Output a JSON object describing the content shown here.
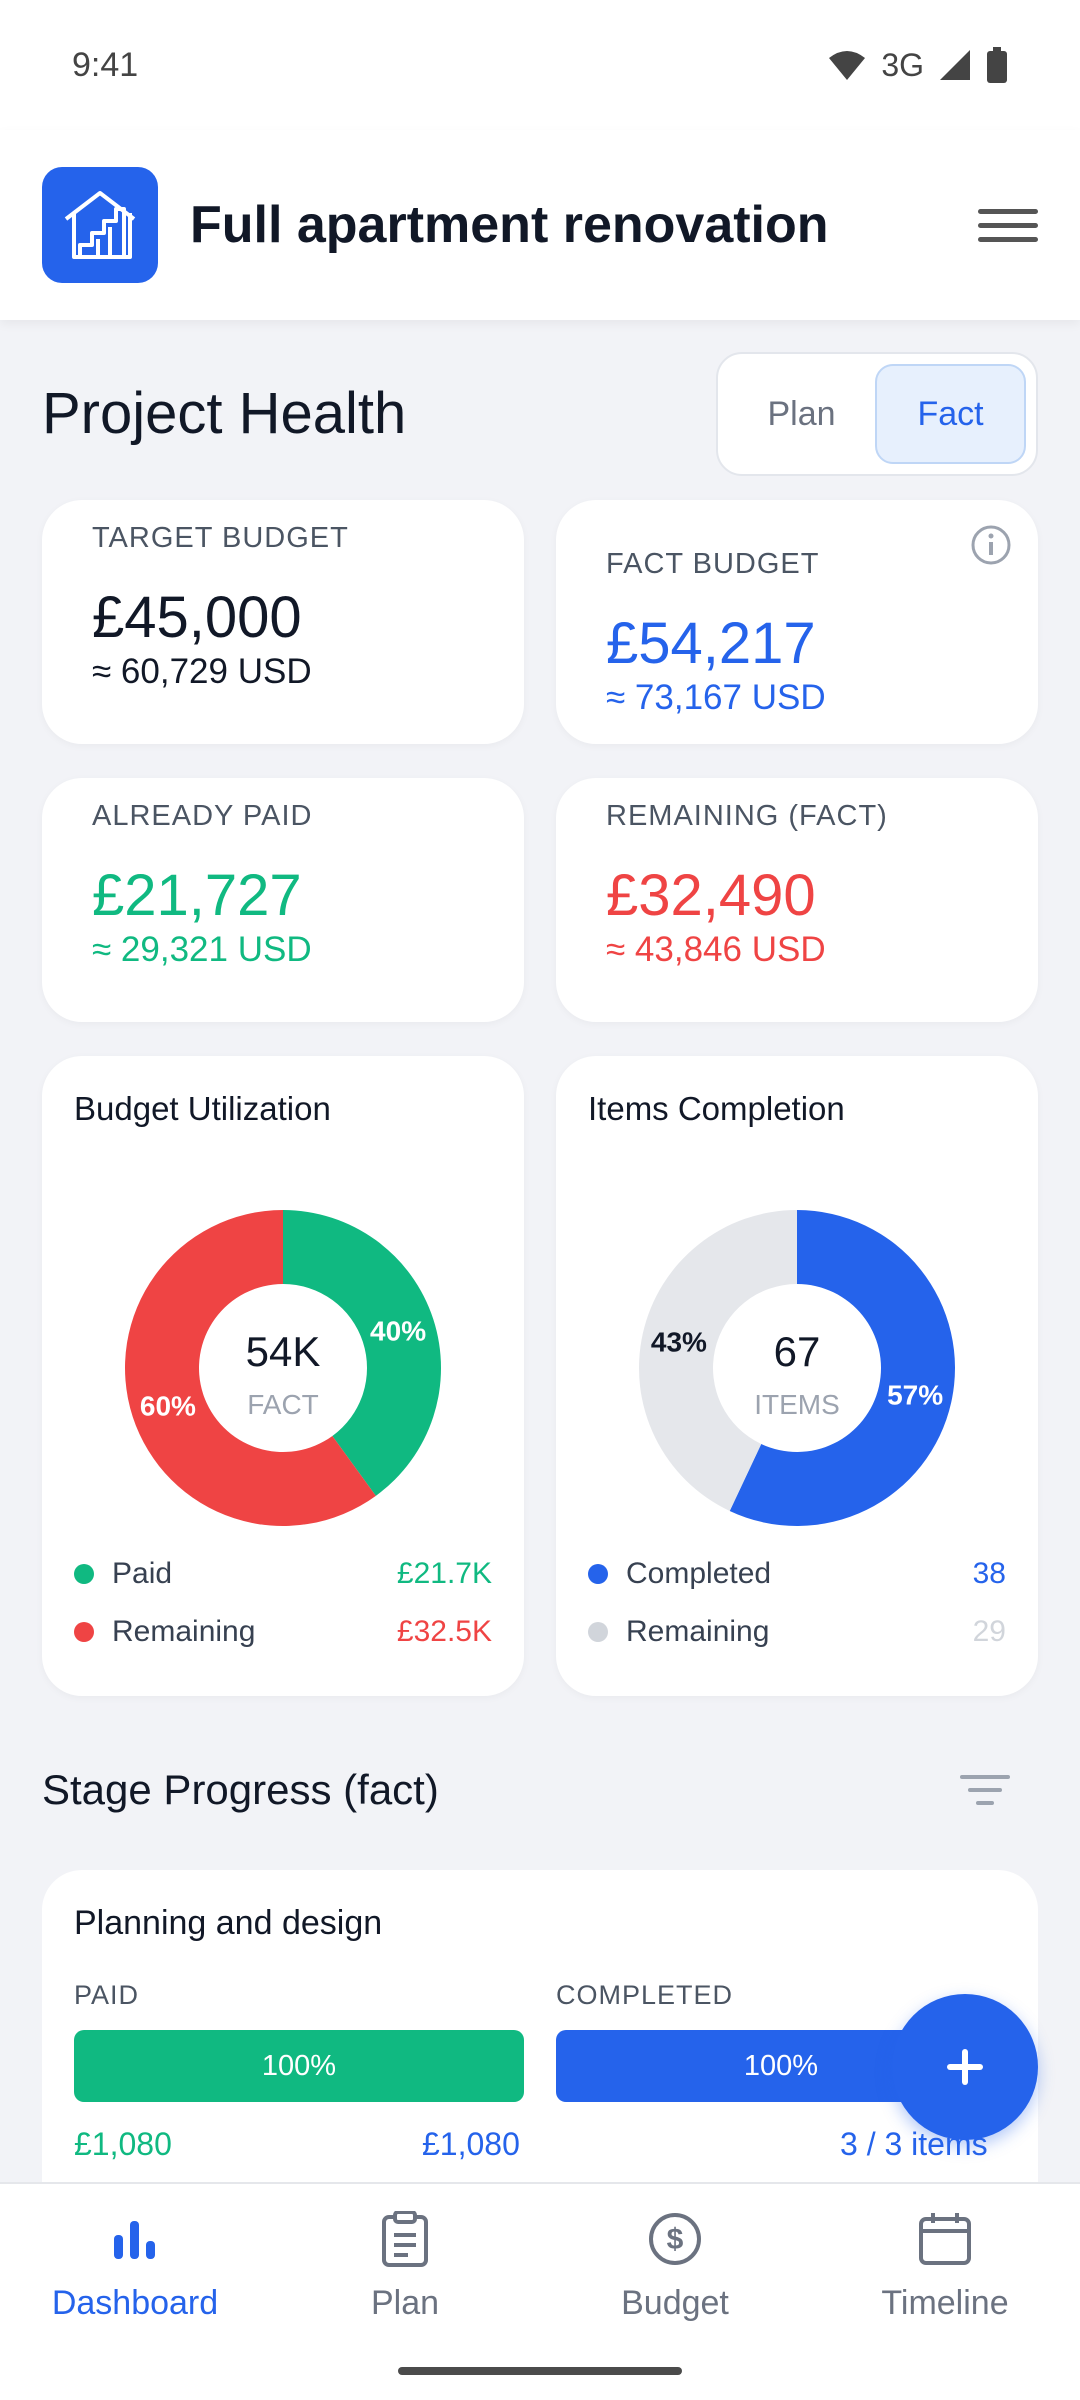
{
  "status_bar": {
    "time": "9:41",
    "network": "3G"
  },
  "header": {
    "title": "Full apartment renovation",
    "logo_icon": "house-stairs-icon",
    "menu_icon": "hamburger-menu-icon"
  },
  "health": {
    "title": "Project Health",
    "toggle": {
      "plan": "Plan",
      "fact": "Fact",
      "selected": "Fact"
    }
  },
  "stats": {
    "target": {
      "label": "TARGET BUDGET",
      "value": "£45,000",
      "sub": "≈ 60,729 USD"
    },
    "fact": {
      "label": "FACT BUDGET",
      "value": "£54,217",
      "sub": "≈ 73,167 USD"
    },
    "paid": {
      "label": "ALREADY PAID",
      "value": "£21,727",
      "sub": "≈ 29,321 USD"
    },
    "remaining": {
      "label": "REMAINING (FACT)",
      "value": "£32,490",
      "sub": "≈ 43,846 USD"
    }
  },
  "budget_chart": {
    "title": "Budget Utilization",
    "center_value": "54K",
    "center_label": "FACT",
    "segments": [
      {
        "name": "Paid",
        "percent": 40,
        "pct_label": "40%",
        "color": "#10b981",
        "legend_value": "£21.7K"
      },
      {
        "name": "Remaining",
        "percent": 60,
        "pct_label": "60%",
        "color": "#ef4444",
        "legend_value": "£32.5K"
      }
    ]
  },
  "items_chart": {
    "title": "Items Completion",
    "center_value": "67",
    "center_label": "ITEMS",
    "segments": [
      {
        "name": "Completed",
        "percent": 57,
        "pct_label": "57%",
        "color": "#2563eb",
        "legend_value": "38"
      },
      {
        "name": "Remaining",
        "percent": 43,
        "pct_label": "43%",
        "color": "#e5e7eb",
        "legend_value": "29"
      }
    ]
  },
  "stage_progress": {
    "title": "Stage Progress (fact)",
    "stages": [
      {
        "name": "Planning and design",
        "paid_label": "PAID",
        "paid_percent": "100%",
        "paid_amount": "£1,080",
        "total_amount": "£1,080",
        "completed_label": "COMPLETED",
        "completed_percent": "100%",
        "items_text": "3 / 3 items"
      }
    ]
  },
  "nav": {
    "items": [
      {
        "label": "Dashboard",
        "icon": "bar-chart-icon"
      },
      {
        "label": "Plan",
        "icon": "clipboard-icon"
      },
      {
        "label": "Budget",
        "icon": "dollar-circle-icon"
      },
      {
        "label": "Timeline",
        "icon": "calendar-icon"
      }
    ],
    "active": "Dashboard"
  },
  "colors": {
    "primary": "#2563eb",
    "green": "#10b981",
    "red": "#ef4444",
    "text": "#111827"
  }
}
